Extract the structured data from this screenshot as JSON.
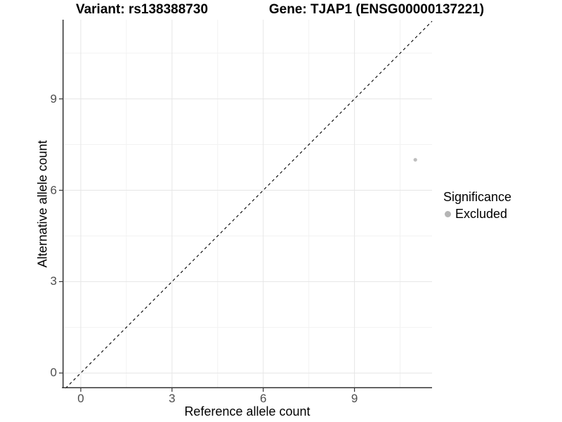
{
  "figure": {
    "title_left": "Variant: rs138388730",
    "title_right": "Gene: TJAP1 (ENSG00000137221)"
  },
  "chart_data": {
    "type": "scatter",
    "title": "Variant: rs138388730 — Gene: TJAP1 (ENSG00000137221)",
    "xlabel": "Reference allele count",
    "ylabel": "Alternative allele count",
    "xlim": [
      -0.6,
      11.55
    ],
    "ylim": [
      -0.5,
      11.6
    ],
    "x_ticks": [
      0,
      3,
      6,
      9
    ],
    "y_ticks": [
      0,
      3,
      6,
      9
    ],
    "x_minor_ticks": [
      1.5,
      4.5,
      7.5,
      10.5
    ],
    "y_minor_ticks": [
      1.5,
      4.5,
      7.5,
      10.5
    ],
    "grid": "on",
    "identity_line": {
      "equation": "y = x",
      "style": "dashed",
      "color": "#000000"
    },
    "series": [
      {
        "name": "Excluded",
        "color": "#bebebe",
        "point_radius": 2.6,
        "points": [
          {
            "x": 11,
            "y": 7
          }
        ]
      }
    ],
    "legend": {
      "title": "Significance",
      "position": "right",
      "items": [
        {
          "label": "Excluded",
          "color": "#b5b5b5"
        }
      ]
    },
    "colors": {
      "grid_major": "#e6e6e6",
      "grid_minor": "#f2f2f2",
      "axis_line": "#333333",
      "tick_mark": "#333333",
      "tick_label": "#4d4d4d"
    }
  }
}
